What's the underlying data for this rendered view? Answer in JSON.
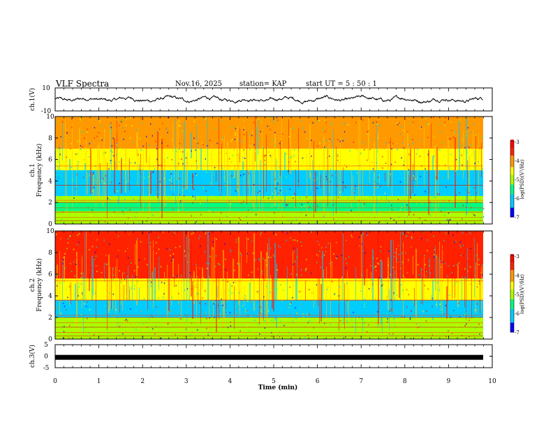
{
  "header": {
    "title": "VLF Spectra",
    "date": "Nov.16, 2025",
    "station": "station= KAP",
    "start": "start  UT =  5 : 50 : 1"
  },
  "colors": {
    "scale": [
      "#000099",
      "#0000ff",
      "#00ccff",
      "#00ff66",
      "#aaff00",
      "#ffff00",
      "#ffaa00",
      "#ff3300",
      "#ff0000",
      "#ffffff"
    ],
    "trace": "#000000"
  },
  "chart_data": [
    {
      "type": "line",
      "name": "ch1-voltage",
      "ylabel": "ch.1(V)",
      "ylim": [
        -10,
        10
      ],
      "yticks": [
        "10",
        "-10"
      ],
      "xlim": [
        0,
        10
      ],
      "note": "broadband waveform, approx -4..+4 V"
    },
    {
      "type": "heatmap",
      "name": "ch1-spectrogram",
      "ylabel": "ch.1\nFrequency (kHz)",
      "ylim": [
        0,
        10
      ],
      "yticks": [
        "0",
        "2",
        "4",
        "6",
        "8",
        "10"
      ],
      "xlim": [
        0,
        9.85
      ],
      "colorbar": {
        "label": "log(PSD)(V²/Hz)",
        "range": [
          -7,
          -3
        ],
        "ticks": [
          "-3",
          "-4",
          "-5",
          "-6",
          "-7"
        ]
      },
      "bands_khz": [
        [
          0,
          1.2,
          -5.0
        ],
        [
          1.2,
          2.0,
          -5.4
        ],
        [
          2.0,
          2.6,
          -5.3
        ],
        [
          2.6,
          5.0,
          -6.1
        ],
        [
          5.0,
          7.0,
          -4.6
        ],
        [
          7.0,
          10,
          -4.2
        ]
      ]
    },
    {
      "type": "heatmap",
      "name": "ch2-spectrogram",
      "ylabel": "ch.2\nFrequency (kHz)",
      "ylim": [
        0,
        10
      ],
      "yticks": [
        "0",
        "2",
        "4",
        "6",
        "8",
        "10"
      ],
      "xlim": [
        0,
        9.85
      ],
      "colorbar": {
        "label": "log(PSD)(V²/Hz)",
        "range": [
          -7,
          -3
        ],
        "ticks": [
          "-3",
          "-4",
          "-5",
          "-6",
          "-7"
        ]
      },
      "bands_khz": [
        [
          0,
          1.2,
          -5.0
        ],
        [
          1.2,
          2.0,
          -5.3
        ],
        [
          2.0,
          3.6,
          -5.9
        ],
        [
          3.6,
          5.6,
          -4.6
        ],
        [
          5.6,
          10,
          -3.6
        ]
      ]
    },
    {
      "type": "line",
      "name": "ch3-voltage",
      "ylabel": "ch.3(V)",
      "ylim": [
        -5,
        5
      ],
      "yticks": [
        "5",
        "0",
        "-5"
      ],
      "xlim": [
        0,
        9.85
      ],
      "values_level": -0.5
    }
  ],
  "xaxis": {
    "label": "Time  (min)",
    "ticks": [
      "0",
      "1",
      "2",
      "3",
      "4",
      "5",
      "6",
      "7",
      "8",
      "9",
      "10"
    ]
  }
}
